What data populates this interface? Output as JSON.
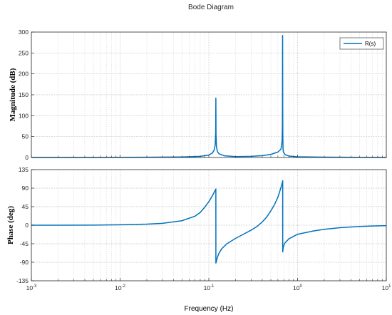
{
  "chart_data": [
    {
      "type": "line",
      "title": "Bode Diagram",
      "ylabel": "Magnitude (dB)",
      "xlabel": "",
      "xscale": "log",
      "xlim": [
        0.001,
        10
      ],
      "ylim": [
        0,
        300
      ],
      "yticks": [
        "0",
        "50",
        "100",
        "150",
        "200",
        "250",
        "300"
      ],
      "grid": true,
      "legend": {
        "position": "top-right",
        "entries": [
          "R(s)"
        ]
      },
      "series": [
        {
          "name": "R(s)",
          "color": "#0072BD",
          "x": [
            0.001,
            0.002,
            0.005,
            0.01,
            0.02,
            0.05,
            0.08,
            0.1,
            0.11,
            0.115,
            0.118,
            0.1195,
            0.12,
            0.1205,
            0.122,
            0.125,
            0.13,
            0.15,
            0.2,
            0.3,
            0.4,
            0.5,
            0.6,
            0.65,
            0.67,
            0.675,
            0.678,
            0.68,
            0.682,
            0.685,
            0.69,
            0.72,
            0.8,
            1,
            2,
            5,
            10
          ],
          "y": [
            0.3,
            0.3,
            0.3,
            0.4,
            0.6,
            1.3,
            2.8,
            6,
            11,
            18,
            30,
            60,
            142,
            55,
            25,
            14,
            9,
            4,
            2.2,
            2.8,
            4.5,
            7.5,
            13,
            20,
            40,
            80,
            292,
            120,
            50,
            25,
            14,
            7,
            3.5,
            1.8,
            0.8,
            0.4,
            0.3
          ]
        }
      ]
    },
    {
      "type": "line",
      "ylabel": "Phase (deg)",
      "xlabel": "Frequency  (Hz)",
      "xscale": "log",
      "xlim": [
        0.001,
        10
      ],
      "ylim": [
        -135,
        135
      ],
      "yticks": [
        "-135",
        "-90",
        "-45",
        "0",
        "45",
        "90",
        "135"
      ],
      "xticks": [
        {
          "base": "10",
          "exp": "-3"
        },
        {
          "base": "10",
          "exp": "-2"
        },
        {
          "base": "10",
          "exp": "-1"
        },
        {
          "base": "10",
          "exp": "0"
        },
        {
          "base": "10",
          "exp": "1"
        }
      ],
      "grid": true,
      "series": [
        {
          "name": "R(s)",
          "color": "#0072BD",
          "x": [
            0.001,
            0.002,
            0.005,
            0.01,
            0.02,
            0.03,
            0.05,
            0.07,
            0.08,
            0.09,
            0.1,
            0.11,
            0.115,
            0.12,
            0.1201,
            0.125,
            0.13,
            0.14,
            0.16,
            0.2,
            0.25,
            0.3,
            0.35,
            0.4,
            0.45,
            0.5,
            0.55,
            0.6,
            0.63,
            0.65,
            0.67,
            0.68,
            0.6801,
            0.69,
            0.72,
            0.8,
            1,
            1.5,
            2,
            3,
            5,
            7,
            10
          ],
          "y": [
            0,
            0,
            0.3,
            1,
            2.5,
            4.5,
            11,
            22,
            31,
            44,
            57,
            72,
            80,
            88,
            -92,
            -78,
            -68,
            -57,
            -45,
            -32,
            -21,
            -12,
            -3,
            8,
            20,
            35,
            50,
            68,
            82,
            92,
            102,
            108,
            -65,
            -53,
            -43,
            -33,
            -22,
            -14,
            -10,
            -6,
            -3,
            -2,
            -1
          ]
        }
      ]
    }
  ]
}
